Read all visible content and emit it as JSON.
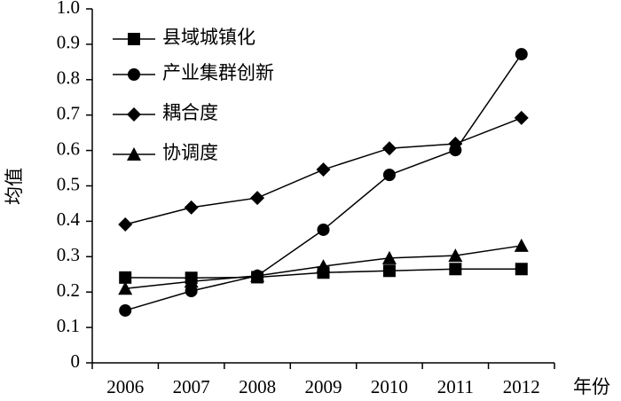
{
  "chart_data": {
    "type": "line",
    "x_label": "年份",
    "y_label": "均值",
    "categories": [
      "2006",
      "2007",
      "2008",
      "2009",
      "2010",
      "2011",
      "2012"
    ],
    "series": [
      {
        "name": "县域城镇化",
        "color": "#000000",
        "marker": "square",
        "values": [
          0.241,
          0.24,
          0.242,
          0.255,
          0.26,
          0.265,
          0.265
        ]
      },
      {
        "name": "产业集群创新",
        "color": "#000000",
        "marker": "circle",
        "values": [
          0.148,
          0.203,
          0.246,
          0.376,
          0.531,
          0.601,
          0.872
        ]
      },
      {
        "name": "耦合度",
        "color": "#000000",
        "marker": "diamond",
        "values": [
          0.391,
          0.439,
          0.466,
          0.546,
          0.606,
          0.619,
          0.692
        ]
      },
      {
        "name": "协调度",
        "color": "#000000",
        "marker": "triangle",
        "values": [
          0.21,
          0.23,
          0.246,
          0.273,
          0.296,
          0.303,
          0.331
        ]
      }
    ],
    "ylim": [
      0,
      1.0
    ],
    "yticks": [
      0,
      0.1,
      0.2,
      0.3,
      0.4,
      0.5,
      0.6,
      0.7,
      0.8,
      0.9,
      {
        "value": 1.0,
        "label": "1.0"
      }
    ],
    "grid": false,
    "legend": "upper left"
  }
}
